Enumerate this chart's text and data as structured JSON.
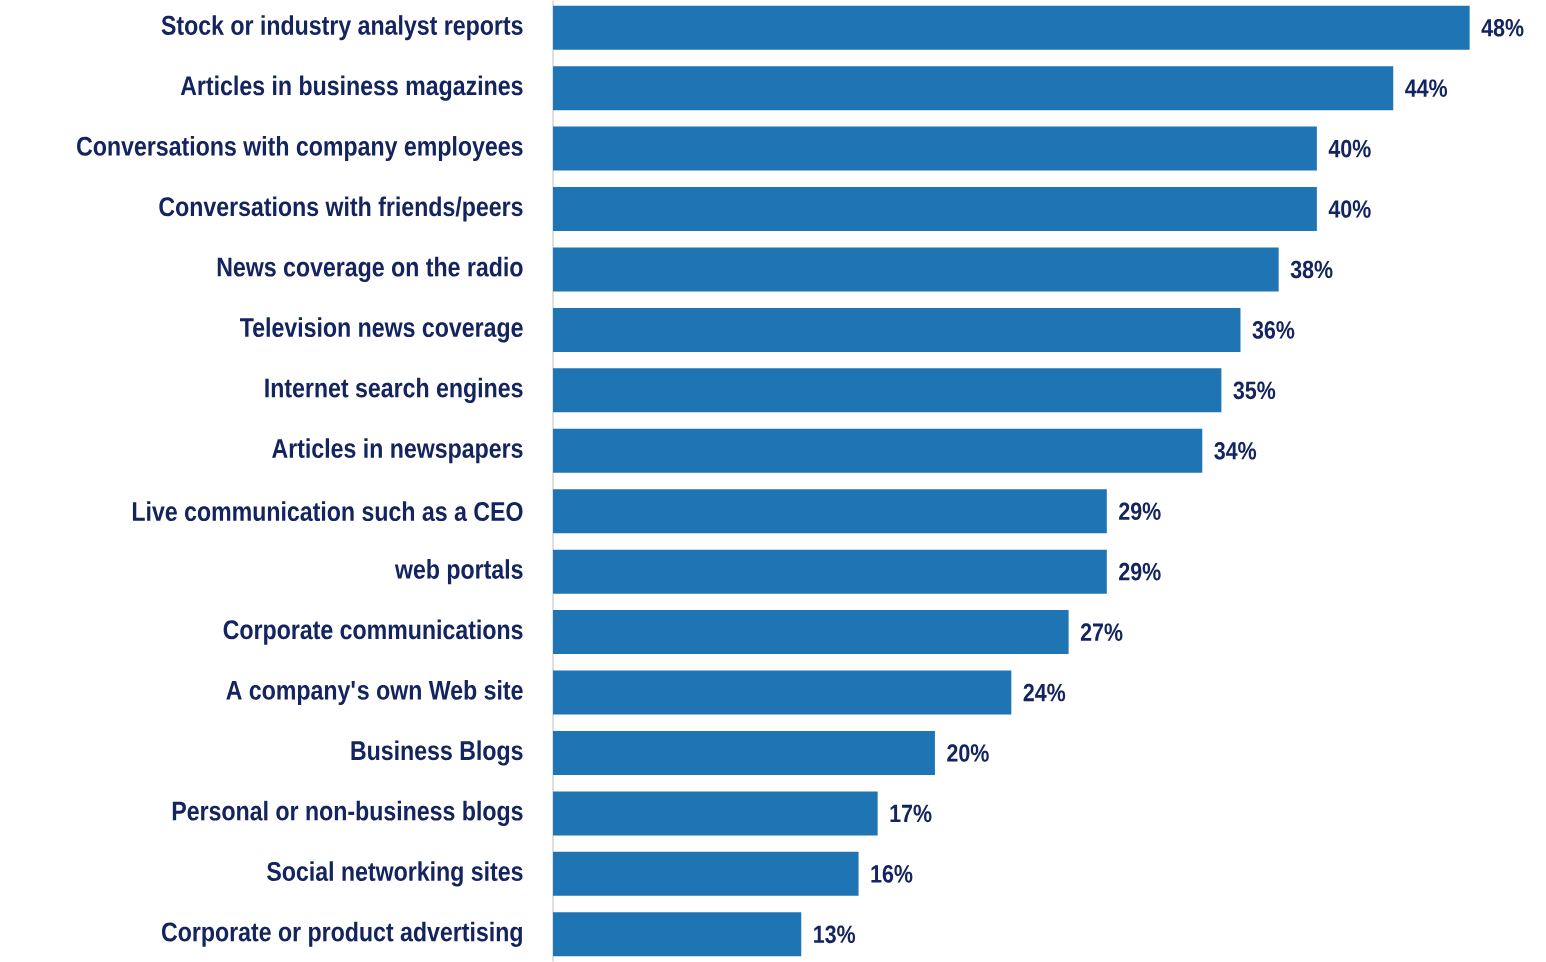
{
  "chart_data": {
    "type": "bar",
    "orientation": "horizontal",
    "color": "#1f74b4",
    "categories": [
      "Stock or industry analyst reports",
      "Articles in business magazines",
      "Conversations with company employees",
      "Conversations with friends/peers",
      "News coverage on the radio",
      "Television news coverage",
      "Internet search engines",
      "Articles in newspapers",
      "Live communication such as a CEO",
      "web portals",
      "Corporate communications",
      "A company's own Web site",
      "Business Blogs",
      "Personal or non-business blogs",
      "Social networking sites",
      "Corporate or product advertising"
    ],
    "values": [
      48,
      44,
      40,
      40,
      38,
      36,
      35,
      34,
      29,
      29,
      27,
      24,
      20,
      17,
      16,
      13
    ],
    "value_labels": [
      "48%",
      "44%",
      "40%",
      "40%",
      "38%",
      "36%",
      "35%",
      "34%",
      "29%",
      "29%",
      "27%",
      "24%",
      "20%",
      "17%",
      "16%",
      "13%"
    ],
    "tick_labels": "y",
    "grid": false
  }
}
